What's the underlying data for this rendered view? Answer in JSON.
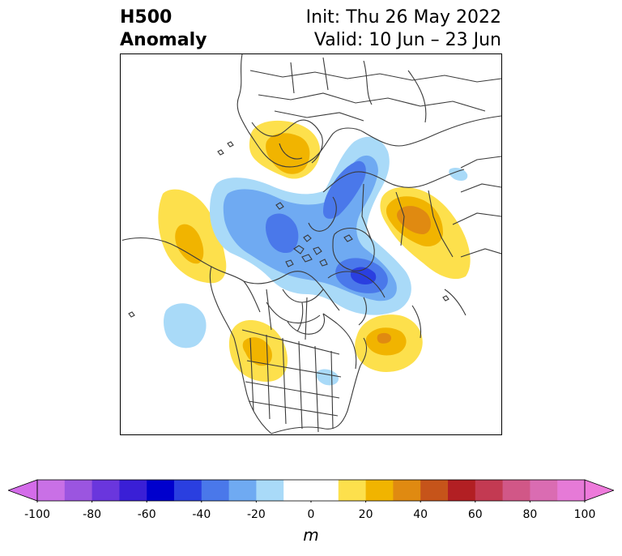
{
  "title": {
    "left_line1": "H500",
    "left_line2": "Anomaly",
    "right_line1": "Init: Thu 26 May 2022",
    "right_line2": "Valid: 10 Jun – 23 Jun"
  },
  "colorbar": {
    "unit": "m",
    "min": -100,
    "max": 100,
    "ticks": [
      "-100",
      "-80",
      "-60",
      "-40",
      "-20",
      "0",
      "20",
      "40",
      "60",
      "80",
      "100"
    ],
    "tick_values": [
      -100,
      -80,
      -60,
      -40,
      -20,
      0,
      20,
      40,
      60,
      80,
      100
    ],
    "extend": "both",
    "bins": [
      {
        "from": -100,
        "to": -90,
        "color": "#c970e6"
      },
      {
        "from": -90,
        "to": -80,
        "color": "#9b55e0"
      },
      {
        "from": -80,
        "to": -70,
        "color": "#6a36dd"
      },
      {
        "from": -70,
        "to": -60,
        "color": "#3a1fd6"
      },
      {
        "from": -60,
        "to": -50,
        "color": "#0000cd"
      },
      {
        "from": -50,
        "to": -40,
        "color": "#2a3fe0"
      },
      {
        "from": -40,
        "to": -30,
        "color": "#4a78ea"
      },
      {
        "from": -30,
        "to": -20,
        "color": "#6faaf2"
      },
      {
        "from": -20,
        "to": -10,
        "color": "#a9daf8"
      },
      {
        "from": -10,
        "to": 10,
        "color": "#ffffff"
      },
      {
        "from": 10,
        "to": 20,
        "color": "#fde04c"
      },
      {
        "from": 20,
        "to": 30,
        "color": "#f1b400"
      },
      {
        "from": 30,
        "to": 40,
        "color": "#e08a11"
      },
      {
        "from": 40,
        "to": 50,
        "color": "#c6541a"
      },
      {
        "from": 50,
        "to": 60,
        "color": "#b21f23"
      },
      {
        "from": 60,
        "to": 70,
        "color": "#c33a52"
      },
      {
        "from": 70,
        "to": 80,
        "color": "#d15787"
      },
      {
        "from": 80,
        "to": 90,
        "color": "#da6cb2"
      },
      {
        "from": 90,
        "to": 100,
        "color": "#e67ad7"
      }
    ],
    "extend_low_color": "#d46cea",
    "extend_high_color": "#ee7adb"
  },
  "map": {
    "projection": "polar stereographic, Northern Hemisphere",
    "anomalies": [
      {
        "region": "Scandinavia / Barents Sea",
        "sign": "positive",
        "peak": 30
      },
      {
        "region": "Western Russia / Ural",
        "sign": "positive",
        "peak": 40
      },
      {
        "region": "North Pacific / Bering",
        "sign": "positive",
        "peak": 30
      },
      {
        "region": "Western United States",
        "sign": "positive",
        "peak": 30
      },
      {
        "region": "North Atlantic east of Canada",
        "sign": "positive",
        "peak": 40
      },
      {
        "region": "Central Siberia",
        "sign": "negative",
        "peak": -40
      },
      {
        "region": "Arctic Ocean / Kara Sea",
        "sign": "negative",
        "peak": -40
      },
      {
        "region": "Canadian Archipelago / Greenland",
        "sign": "negative",
        "peak": -50
      },
      {
        "region": "Gulf of Alaska offshore",
        "sign": "negative",
        "peak": -20
      },
      {
        "region": "US Northeast",
        "sign": "negative",
        "peak": -20
      }
    ]
  }
}
